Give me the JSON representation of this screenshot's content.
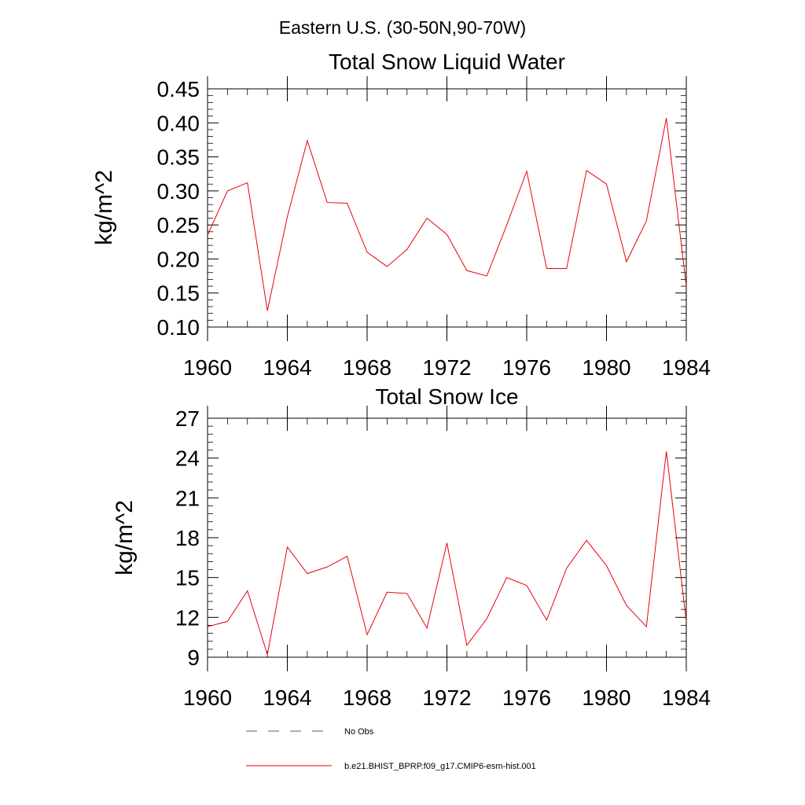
{
  "figure": {
    "suptitle": "Eastern U.S. (30-50N,90-70W)"
  },
  "legend": {
    "placement": "bottom",
    "entries": [
      {
        "label": "No Obs",
        "color": "#5a5a8c",
        "dash": "dashed"
      },
      {
        "label": "b.e21.BHIST_BPRP.f09_g17.CMIP6-esm-hist.001",
        "color": "#e8000b",
        "dash": "solid"
      }
    ]
  },
  "chart_data": [
    {
      "type": "line",
      "title": "Total Snow Liquid Water",
      "xlabel": "",
      "ylabel": "kg/m^2",
      "xlim": [
        1960,
        1984
      ],
      "ylim": [
        0.1,
        0.45
      ],
      "x_ticks": [
        1960,
        1964,
        1968,
        1972,
        1976,
        1980,
        1984
      ],
      "x_tick_labels": [
        "1960",
        "1964",
        "1968",
        "1972",
        "1976",
        "1980",
        "1984"
      ],
      "y_ticks": [
        0.1,
        0.15,
        0.2,
        0.25,
        0.3,
        0.35,
        0.4,
        0.45
      ],
      "y_tick_labels": [
        "0.10",
        "0.15",
        "0.20",
        "0.25",
        "0.30",
        "0.35",
        "0.40",
        "0.45"
      ],
      "grid": false,
      "series": [
        {
          "name": "b.e21.BHIST_BPRP.f09_g17.CMIP6-esm-hist.001",
          "color": "#e8000b",
          "x": [
            1960,
            1961,
            1962,
            1963,
            1964,
            1965,
            1966,
            1967,
            1968,
            1969,
            1970,
            1971,
            1972,
            1973,
            1974,
            1975,
            1976,
            1977,
            1978,
            1979,
            1980,
            1981,
            1982,
            1983,
            1984
          ],
          "y": [
            0.235,
            0.3,
            0.312,
            0.124,
            0.262,
            0.374,
            0.283,
            0.282,
            0.21,
            0.189,
            0.214,
            0.26,
            0.236,
            0.183,
            0.175,
            0.25,
            0.329,
            0.186,
            0.186,
            0.33,
            0.31,
            0.196,
            0.256,
            0.407,
            0.16
          ]
        }
      ]
    },
    {
      "type": "line",
      "title": "Total Snow Ice",
      "xlabel": "",
      "ylabel": "kg/m^2",
      "xlim": [
        1960,
        1984
      ],
      "ylim": [
        9,
        27
      ],
      "x_ticks": [
        1960,
        1964,
        1968,
        1972,
        1976,
        1980,
        1984
      ],
      "x_tick_labels": [
        "1960",
        "1964",
        "1968",
        "1972",
        "1976",
        "1980",
        "1984"
      ],
      "y_ticks": [
        9,
        12,
        15,
        18,
        21,
        24,
        27
      ],
      "y_tick_labels": [
        "9",
        "12",
        "15",
        "18",
        "21",
        "24",
        "27"
      ],
      "grid": false,
      "series": [
        {
          "name": "b.e21.BHIST_BPRP.f09_g17.CMIP6-esm-hist.001",
          "color": "#e8000b",
          "x": [
            1960,
            1961,
            1962,
            1963,
            1964,
            1965,
            1966,
            1967,
            1968,
            1969,
            1970,
            1971,
            1972,
            1973,
            1974,
            1975,
            1976,
            1977,
            1978,
            1979,
            1980,
            1981,
            1982,
            1983,
            1984
          ],
          "y": [
            11.3,
            11.7,
            14.0,
            9.2,
            17.3,
            15.3,
            15.8,
            16.6,
            10.7,
            13.9,
            13.8,
            11.2,
            17.6,
            9.9,
            11.9,
            15.0,
            14.4,
            11.8,
            15.7,
            17.8,
            15.9,
            12.9,
            11.3,
            24.5,
            11.7
          ]
        }
      ]
    }
  ]
}
